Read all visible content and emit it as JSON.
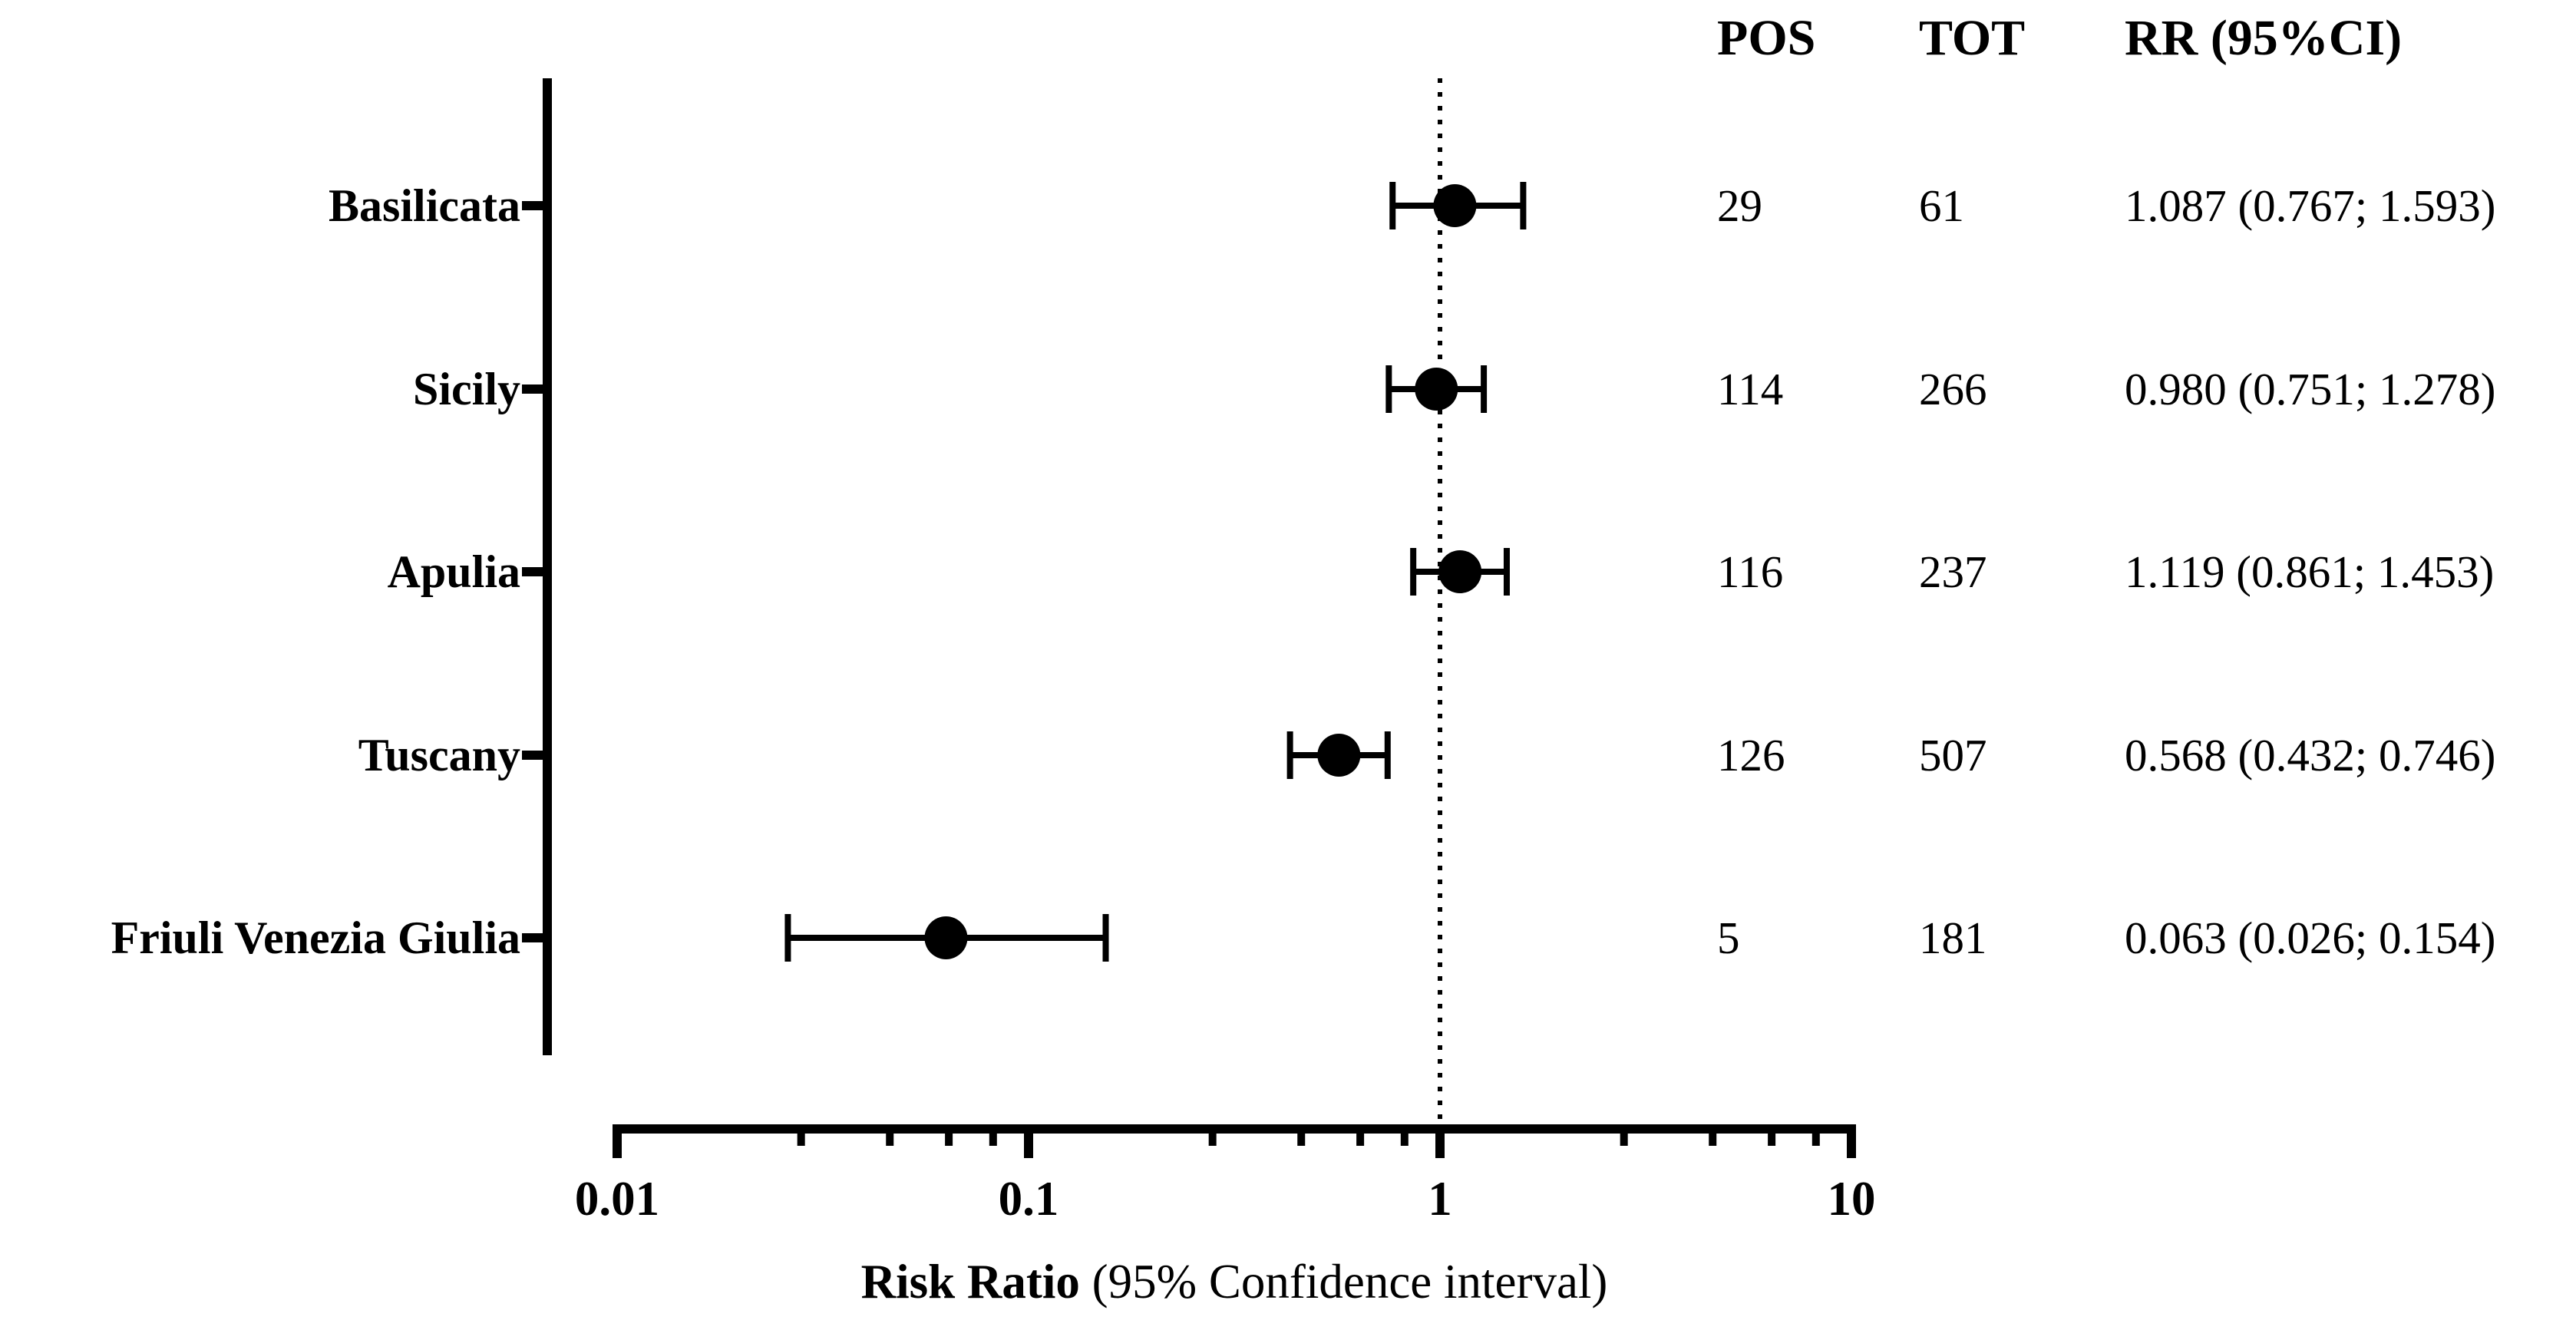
{
  "chart_data": {
    "type": "scatter",
    "style": "forest-plot",
    "background": "#ffffff",
    "foreground": "#000000",
    "table_headers": {
      "pos": "POS",
      "tot": "TOT",
      "rr": "RR (95%CI)"
    },
    "rows": [
      {
        "label": "Basilicata",
        "pos": "29",
        "tot": "61",
        "rr": 1.087,
        "ci_low": 0.767,
        "ci_high": 1.593,
        "rr_text": "1.087 (0.767; 1.593)"
      },
      {
        "label": "Sicily",
        "pos": "114",
        "tot": "266",
        "rr": 0.98,
        "ci_low": 0.751,
        "ci_high": 1.278,
        "rr_text": "0.980 (0.751; 1.278)"
      },
      {
        "label": "Apulia",
        "pos": "116",
        "tot": "237",
        "rr": 1.119,
        "ci_low": 0.861,
        "ci_high": 1.453,
        "rr_text": "1.119 (0.861; 1.453)"
      },
      {
        "label": "Tuscany",
        "pos": "126",
        "tot": "507",
        "rr": 0.568,
        "ci_low": 0.432,
        "ci_high": 0.746,
        "rr_text": "0.568 (0.432; 0.746)"
      },
      {
        "label": "Friuli Venezia Giulia",
        "pos": "5",
        "tot": "181",
        "rr": 0.063,
        "ci_low": 0.026,
        "ci_high": 0.154,
        "rr_text": "0.063 (0.026; 0.154)"
      }
    ],
    "x_axis": {
      "scale": "log10",
      "range": [
        0.01,
        10
      ],
      "tick_labels": [
        "0.01",
        "0.1",
        "1",
        "10"
      ],
      "tick_values": [
        0.01,
        0.1,
        1,
        10
      ],
      "minor_tick_multiples": [
        2.8,
        4.6,
        6.4,
        8.2
      ],
      "reference_line": 1,
      "title_bold": "Risk Ratio",
      "title_regular": "(95% Confidence interval)"
    }
  }
}
